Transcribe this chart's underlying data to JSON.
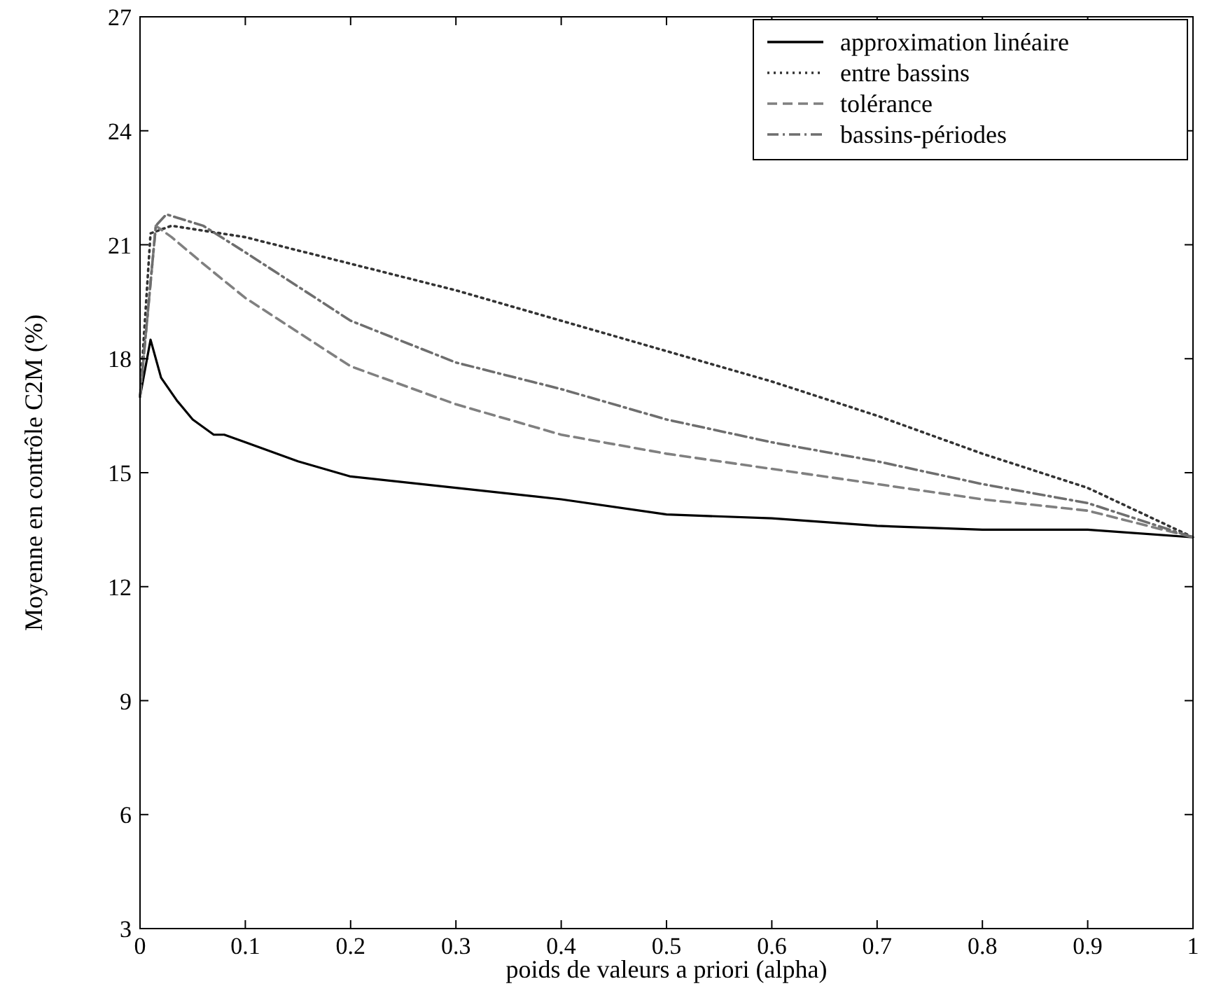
{
  "chart_data": {
    "type": "line",
    "xlabel": "poids de valeurs a priori (alpha)",
    "ylabel": "Moyenne en contrôle C2M (%)",
    "xlim": [
      0,
      1
    ],
    "ylim": [
      3,
      27
    ],
    "xticks": [
      0,
      0.1,
      0.2,
      0.3,
      0.4,
      0.5,
      0.6,
      0.7,
      0.8,
      0.9,
      1
    ],
    "yticks": [
      3,
      6,
      9,
      12,
      15,
      18,
      21,
      24,
      27
    ],
    "grid": false,
    "legend": "top right",
    "series": [
      {
        "name": "approximation linéaire",
        "color": "#000000",
        "line_style": "solid",
        "x": [
          0,
          0.01,
          0.02,
          0.035,
          0.05,
          0.07,
          0.08,
          0.1,
          0.15,
          0.2,
          0.3,
          0.4,
          0.5,
          0.6,
          0.7,
          0.8,
          0.9,
          1
        ],
        "values": [
          17.0,
          18.5,
          17.5,
          16.9,
          16.4,
          16.0,
          16.0,
          15.8,
          15.3,
          14.9,
          14.6,
          14.3,
          13.9,
          13.8,
          13.6,
          13.5,
          13.5,
          13.3
        ]
      },
      {
        "name": "entre bassins",
        "color": "#333333",
        "line_style": "dotted",
        "x": [
          0,
          0.01,
          0.03,
          0.1,
          0.2,
          0.3,
          0.4,
          0.5,
          0.6,
          0.7,
          0.8,
          0.9,
          1
        ],
        "values": [
          17.0,
          21.3,
          21.5,
          21.2,
          20.5,
          19.8,
          19.0,
          18.2,
          17.4,
          16.5,
          15.5,
          14.6,
          13.3
        ]
      },
      {
        "name": "tolérance",
        "color": "#808080",
        "line_style": "dashed",
        "x": [
          0,
          0.015,
          0.03,
          0.06,
          0.1,
          0.2,
          0.3,
          0.4,
          0.5,
          0.6,
          0.7,
          0.8,
          0.9,
          1
        ],
        "values": [
          17.0,
          21.5,
          21.2,
          20.5,
          19.6,
          17.8,
          16.8,
          16.0,
          15.5,
          15.1,
          14.7,
          14.3,
          14.0,
          13.3
        ]
      },
      {
        "name": "bassins-périodes",
        "color": "#6e6e6e",
        "line_style": "dashdot",
        "x": [
          0,
          0.015,
          0.025,
          0.06,
          0.1,
          0.2,
          0.3,
          0.4,
          0.5,
          0.6,
          0.7,
          0.8,
          0.9,
          1
        ],
        "values": [
          17.0,
          21.5,
          21.8,
          21.5,
          20.8,
          19.0,
          17.9,
          17.2,
          16.4,
          15.8,
          15.3,
          14.7,
          14.2,
          13.3
        ]
      }
    ]
  }
}
